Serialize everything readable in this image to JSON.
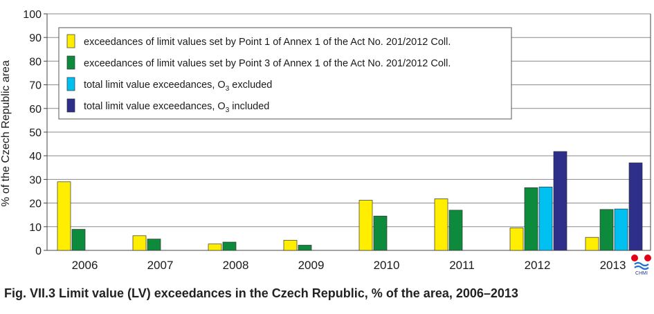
{
  "caption": "Fig. VII.3  Limit value (LV) exceedances in the Czech Republic, % of the area, 2006–2013",
  "logo": {
    "text": "CHMI"
  },
  "chart_data": {
    "type": "bar",
    "title": "",
    "xlabel": "",
    "ylabel": "% of the Czech Republic area",
    "ylim": [
      0,
      100
    ],
    "yticks": [
      0,
      10,
      20,
      30,
      40,
      50,
      60,
      70,
      80,
      90,
      100
    ],
    "grid": true,
    "legend_position": "top-left",
    "categories": [
      "2006",
      "2007",
      "2008",
      "2009",
      "2010",
      "2011",
      "2012",
      "2013"
    ],
    "series": [
      {
        "name": "exceedances of limit values set by Point 1 of Annex 1 of the Act No. 201/2012 Coll.",
        "legend_parts": [
          "exceedances of limit values set by Point 1 of Annex 1 of the Act No. 201/2012 Coll."
        ],
        "color": "#ffee00",
        "values": [
          29,
          6.2,
          2.7,
          4.3,
          21.2,
          21.8,
          9.5,
          5.5
        ]
      },
      {
        "name": "exceedances of limit values set by Point 3 of Annex 1 of the Act No. 201/2012 Coll.",
        "legend_parts": [
          "exceedances of limit values set by Point 3 of Annex 1 of the Act No. 201/2012 Coll."
        ],
        "color": "#0d8a3c",
        "values": [
          8.9,
          4.8,
          3.5,
          2.2,
          14.5,
          17.0,
          26.5,
          17.3
        ]
      },
      {
        "name": "total limit value exceedances, O3 excluded",
        "legend_parts": [
          "total limit value exceedances, O",
          "3",
          " excluded"
        ],
        "color": "#00c0f2",
        "values": [
          null,
          null,
          null,
          null,
          null,
          null,
          26.8,
          17.5
        ]
      },
      {
        "name": "total limit value exceedances, O3 included",
        "legend_parts": [
          "total limit value exceedances, O",
          "3",
          " included"
        ],
        "color": "#2e2f8a",
        "values": [
          null,
          null,
          null,
          null,
          null,
          null,
          41.8,
          37.0
        ]
      }
    ]
  }
}
